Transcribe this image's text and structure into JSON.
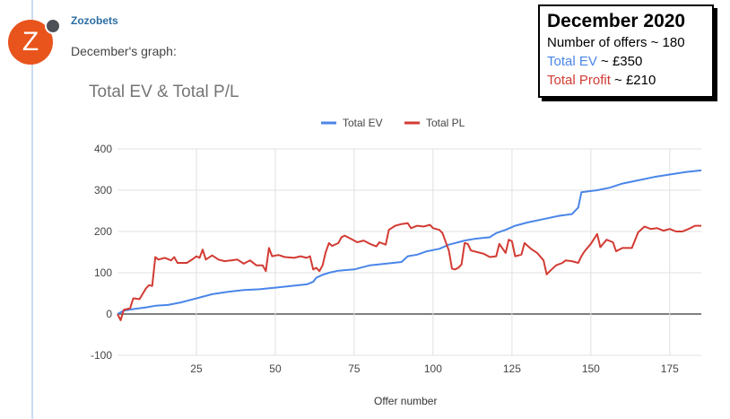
{
  "post": {
    "avatar_letter": "Z",
    "username": "Zozobets",
    "text": "December's graph:"
  },
  "infobox": {
    "title": "December 2020",
    "offers": "Number of offers ~ 180",
    "ev_label": "Total EV",
    "ev_value": " ~ £350",
    "profit_label": "Total Profit",
    "profit_value": " ~ £210"
  },
  "colors": {
    "ev": "#4a86e8",
    "pl": "#d23b33",
    "avatar": "#e8541c",
    "username": "#2d6ea3"
  },
  "chart_data": {
    "type": "line",
    "title": "Total EV & Total P/L",
    "xlabel": "Offer number",
    "ylabel": "",
    "xlim": [
      0,
      185
    ],
    "ylim": [
      -100,
      400
    ],
    "yticks": [
      -100,
      0,
      100,
      200,
      300,
      400
    ],
    "xticks": [
      25,
      50,
      75,
      100,
      125,
      150,
      175
    ],
    "legend": "top-center",
    "grid": true,
    "series": [
      {
        "name": "Total EV",
        "points": [
          [
            0,
            0
          ],
          [
            2,
            8
          ],
          [
            5,
            12
          ],
          [
            9,
            16
          ],
          [
            12,
            20
          ],
          [
            16,
            22
          ],
          [
            20,
            28
          ],
          [
            22,
            32
          ],
          [
            26,
            40
          ],
          [
            30,
            48
          ],
          [
            35,
            54
          ],
          [
            40,
            58
          ],
          [
            45,
            60
          ],
          [
            50,
            64
          ],
          [
            55,
            68
          ],
          [
            60,
            72
          ],
          [
            62,
            78
          ],
          [
            63,
            88
          ],
          [
            65,
            95
          ],
          [
            67,
            100
          ],
          [
            70,
            105
          ],
          [
            75,
            108
          ],
          [
            80,
            118
          ],
          [
            85,
            122
          ],
          [
            90,
            126
          ],
          [
            92,
            140
          ],
          [
            95,
            144
          ],
          [
            98,
            152
          ],
          [
            102,
            158
          ],
          [
            105,
            168
          ],
          [
            108,
            174
          ],
          [
            110,
            178
          ],
          [
            113,
            182
          ],
          [
            118,
            186
          ],
          [
            120,
            196
          ],
          [
            123,
            204
          ],
          [
            126,
            214
          ],
          [
            130,
            222
          ],
          [
            135,
            230
          ],
          [
            140,
            238
          ],
          [
            144,
            242
          ],
          [
            146,
            258
          ],
          [
            147,
            295
          ],
          [
            152,
            300
          ],
          [
            156,
            306
          ],
          [
            160,
            316
          ],
          [
            165,
            324
          ],
          [
            170,
            332
          ],
          [
            175,
            338
          ],
          [
            180,
            344
          ],
          [
            185,
            348
          ]
        ]
      },
      {
        "name": "Total PL",
        "points": [
          [
            0,
            0
          ],
          [
            1,
            -15
          ],
          [
            2,
            10
          ],
          [
            4,
            14
          ],
          [
            5,
            38
          ],
          [
            7,
            36
          ],
          [
            9,
            62
          ],
          [
            10,
            70
          ],
          [
            11,
            68
          ],
          [
            12,
            138
          ],
          [
            13,
            132
          ],
          [
            15,
            136
          ],
          [
            17,
            130
          ],
          [
            18,
            138
          ],
          [
            19,
            124
          ],
          [
            22,
            124
          ],
          [
            24,
            134
          ],
          [
            25,
            140
          ],
          [
            26,
            136
          ],
          [
            27,
            156
          ],
          [
            28,
            132
          ],
          [
            30,
            142
          ],
          [
            32,
            132
          ],
          [
            34,
            128
          ],
          [
            36,
            130
          ],
          [
            38,
            132
          ],
          [
            40,
            122
          ],
          [
            42,
            130
          ],
          [
            44,
            118
          ],
          [
            46,
            118
          ],
          [
            47,
            104
          ],
          [
            48,
            160
          ],
          [
            49,
            140
          ],
          [
            51,
            143
          ],
          [
            53,
            138
          ],
          [
            56,
            136
          ],
          [
            58,
            140
          ],
          [
            60,
            136
          ],
          [
            61,
            140
          ],
          [
            62,
            108
          ],
          [
            63,
            112
          ],
          [
            64,
            104
          ],
          [
            65,
            118
          ],
          [
            66,
            150
          ],
          [
            67,
            172
          ],
          [
            68,
            165
          ],
          [
            70,
            172
          ],
          [
            71,
            186
          ],
          [
            72,
            190
          ],
          [
            74,
            182
          ],
          [
            76,
            174
          ],
          [
            78,
            178
          ],
          [
            80,
            170
          ],
          [
            82,
            164
          ],
          [
            83,
            174
          ],
          [
            85,
            168
          ],
          [
            86,
            204
          ],
          [
            88,
            214
          ],
          [
            90,
            218
          ],
          [
            92,
            220
          ],
          [
            93,
            208
          ],
          [
            95,
            214
          ],
          [
            97,
            212
          ],
          [
            99,
            216
          ],
          [
            100,
            208
          ],
          [
            102,
            204
          ],
          [
            103,
            196
          ],
          [
            105,
            154
          ],
          [
            106,
            110
          ],
          [
            107,
            108
          ],
          [
            108,
            112
          ],
          [
            109,
            120
          ],
          [
            110,
            172
          ],
          [
            111,
            170
          ],
          [
            112,
            154
          ],
          [
            114,
            150
          ],
          [
            116,
            146
          ],
          [
            118,
            138
          ],
          [
            120,
            140
          ],
          [
            121,
            170
          ],
          [
            123,
            148
          ],
          [
            124,
            180
          ],
          [
            125,
            176
          ],
          [
            126,
            140
          ],
          [
            128,
            144
          ],
          [
            129,
            172
          ],
          [
            131,
            158
          ],
          [
            133,
            148
          ],
          [
            135,
            130
          ],
          [
            136,
            96
          ],
          [
            137,
            104
          ],
          [
            139,
            118
          ],
          [
            141,
            124
          ],
          [
            142,
            130
          ],
          [
            144,
            128
          ],
          [
            146,
            124
          ],
          [
            147,
            140
          ],
          [
            148,
            152
          ],
          [
            150,
            170
          ],
          [
            152,
            194
          ],
          [
            153,
            162
          ],
          [
            155,
            180
          ],
          [
            157,
            174
          ],
          [
            158,
            152
          ],
          [
            160,
            160
          ],
          [
            163,
            160
          ],
          [
            165,
            198
          ],
          [
            167,
            212
          ],
          [
            169,
            206
          ],
          [
            171,
            208
          ],
          [
            173,
            202
          ],
          [
            175,
            206
          ],
          [
            177,
            200
          ],
          [
            179,
            200
          ],
          [
            181,
            206
          ],
          [
            183,
            214
          ],
          [
            185,
            214
          ]
        ]
      }
    ]
  }
}
